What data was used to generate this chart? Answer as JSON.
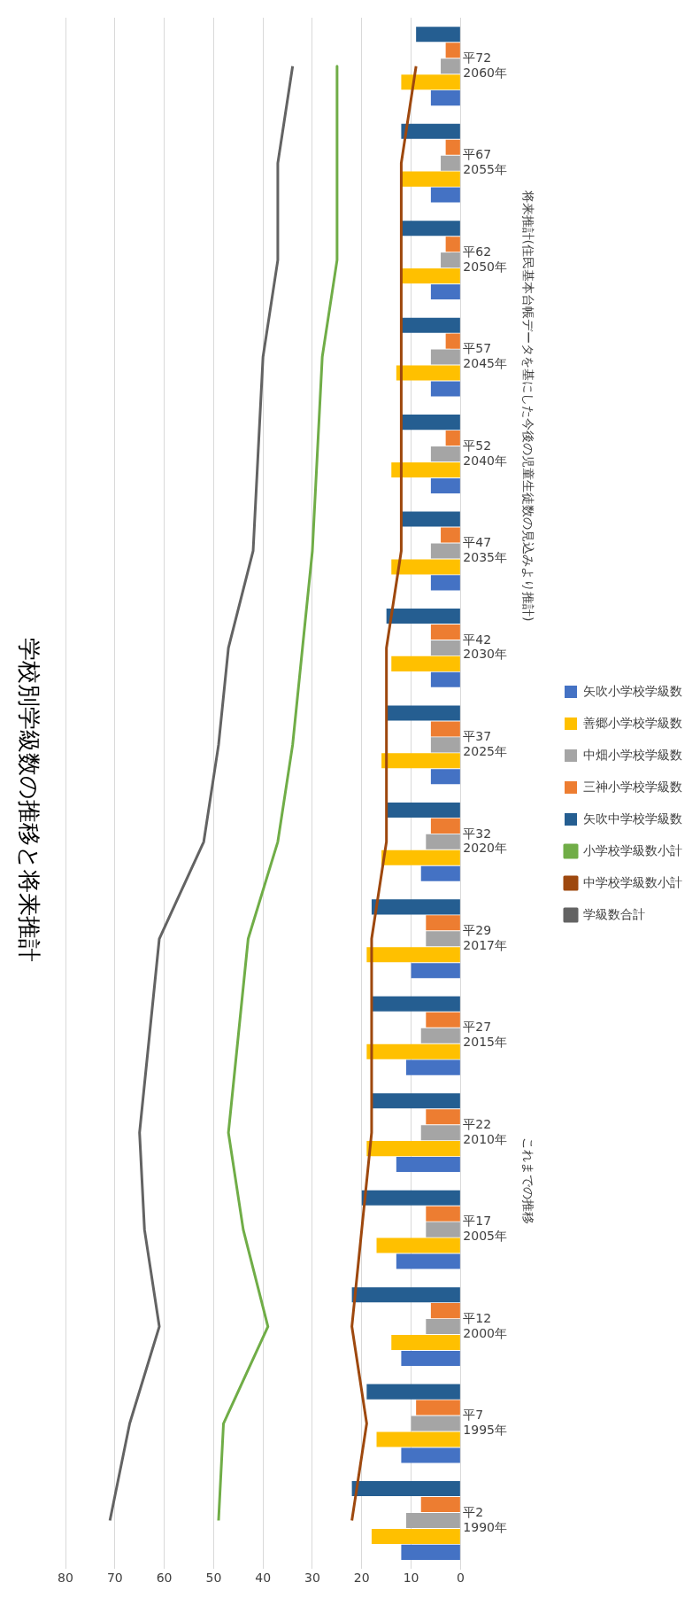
{
  "chart_data": {
    "type": "bar",
    "orientation": "horizontal",
    "title": "学校別学級数の推移と将来推計",
    "categories": [
      "平72\n2060年",
      "平67\n2055年",
      "平62\n2050年",
      "平57\n2045年",
      "平52\n2040年",
      "平47\n2035年",
      "平42\n2030年",
      "平37\n2025年",
      "平32\n2020年",
      "平29\n2017年",
      "平27\n2015年",
      "平22\n2010年",
      "平17\n2005年",
      "平12\n2000年",
      "平7\n1995年",
      "平2\n1990年"
    ],
    "series": [
      {
        "name": "矢吹小学校学級数",
        "color": "#4472c4",
        "values": [
          6,
          6,
          6,
          6,
          6,
          6,
          6,
          6,
          8,
          10,
          11,
          13,
          13,
          12,
          12,
          12
        ]
      },
      {
        "name": "善郷小学校学級数",
        "color": "#ffc000",
        "values": [
          12,
          12,
          12,
          13,
          14,
          14,
          14,
          16,
          16,
          19,
          19,
          19,
          17,
          14,
          17,
          18
        ]
      },
      {
        "name": "中畑小学校学級数",
        "color": "#a5a5a5",
        "values": [
          4,
          4,
          4,
          6,
          6,
          6,
          6,
          6,
          7,
          7,
          8,
          8,
          7,
          7,
          10,
          11
        ]
      },
      {
        "name": "三神小学校学級数",
        "color": "#ed7d31",
        "values": [
          3,
          3,
          3,
          3,
          3,
          4,
          6,
          6,
          6,
          7,
          7,
          7,
          7,
          6,
          9,
          8
        ]
      },
      {
        "name": "矢吹中学校学級数",
        "color": "#255e91",
        "values": [
          9,
          12,
          12,
          12,
          12,
          12,
          15,
          15,
          15,
          18,
          18,
          18,
          20,
          22,
          19,
          22
        ]
      },
      {
        "name": "小学校学級数小計",
        "type": "line",
        "color": "#70ad47",
        "values": [
          25,
          25,
          25,
          28,
          29,
          30,
          32,
          34,
          37,
          43,
          45,
          47,
          44,
          39,
          48,
          49
        ]
      },
      {
        "name": "中学校学級数小計",
        "type": "line",
        "color": "#9e480e",
        "values": [
          9,
          12,
          12,
          12,
          12,
          12,
          15,
          15,
          15,
          18,
          18,
          18,
          20,
          22,
          19,
          22
        ]
      },
      {
        "name": "学級数合計",
        "type": "line",
        "color": "#636363",
        "values": [
          34,
          37,
          37,
          40,
          41,
          42,
          47,
          49,
          52,
          61,
          63,
          65,
          64,
          61,
          67,
          71
        ]
      }
    ],
    "xlim": [
      80,
      0
    ],
    "xticks": [
      0,
      10,
      20,
      30,
      40,
      50,
      60,
      70,
      80
    ],
    "grid": "x",
    "legend": "right",
    "marker": "none",
    "annotations": [
      "将来推計(住民基本台帳データを基にした今後の児童生徒数の見込みより推計)",
      "これまでの推移"
    ]
  }
}
